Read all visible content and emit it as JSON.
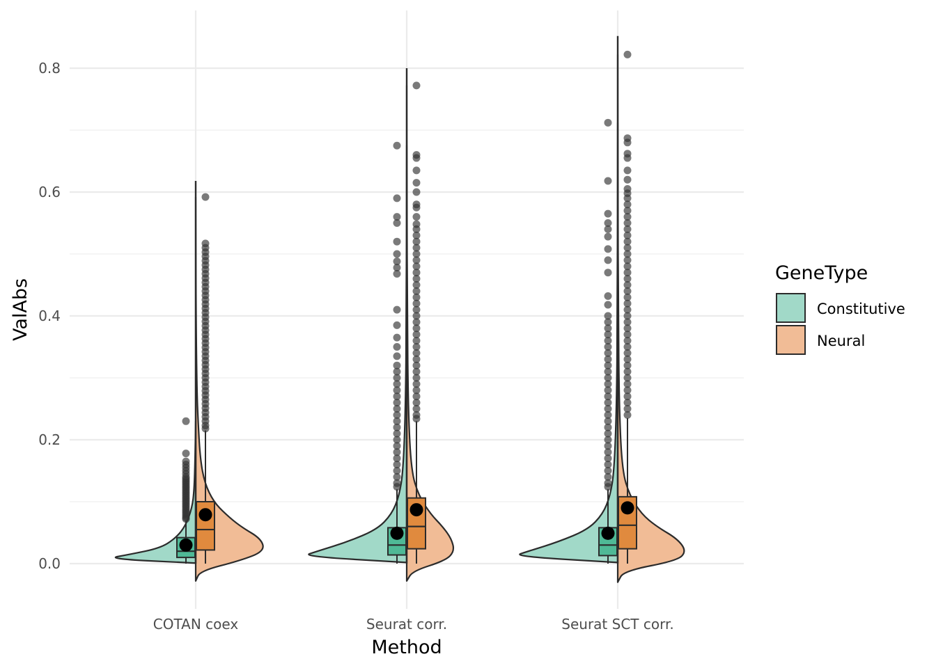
{
  "chart_data": {
    "type": "violin-box",
    "xlabel": "Method",
    "ylabel": "ValAbs",
    "ylim": [
      -0.07,
      0.89
    ],
    "yticks": [
      0.0,
      0.2,
      0.4,
      0.6,
      0.8
    ],
    "ytick_labels": [
      "0.0",
      "0.2",
      "0.4",
      "0.6",
      "0.8"
    ],
    "grid": true,
    "categories": [
      "COTAN coex",
      "Seurat corr.",
      "Seurat SCT corr."
    ],
    "legend": {
      "title": "GeneType",
      "placement": "right",
      "entries": [
        {
          "label": "Constitutive",
          "color": "#a1d9c8"
        },
        {
          "label": "Neural",
          "color": "#f1bc96"
        }
      ]
    },
    "colors": {
      "constitutive_violin": "#a1d9c8",
      "constitutive_box": "#4fb996",
      "neural_violin": "#f1bc96",
      "neural_box": "#e08a3e",
      "outline": "#2b2b2b",
      "mean_point": "#000000",
      "outlier": "#333333"
    },
    "series": [
      {
        "name": "Constitutive",
        "groups": [
          {
            "category": "COTAN coex",
            "q1": 0.01,
            "median": 0.02,
            "q3": 0.042,
            "whisker_low": 0.0,
            "whisker_high": 0.07,
            "mean": 0.03,
            "outliers": [
              0.23,
              0.178,
              0.165,
              0.16,
              0.155,
              0.15,
              0.145,
              0.14,
              0.137,
              0.134,
              0.131,
              0.128,
              0.125,
              0.122,
              0.119,
              0.116,
              0.113,
              0.11,
              0.107,
              0.104,
              0.101,
              0.098,
              0.095,
              0.092,
              0.089,
              0.086,
              0.083,
              0.08,
              0.077,
              0.074,
              0.072
            ]
          },
          {
            "category": "Seurat corr.",
            "q1": 0.014,
            "median": 0.03,
            "q3": 0.058,
            "whisker_low": 0.0,
            "whisker_high": 0.12,
            "mean": 0.049,
            "outliers": [
              0.675,
              0.59,
              0.56,
              0.55,
              0.52,
              0.5,
              0.488,
              0.478,
              0.468,
              0.41,
              0.385,
              0.365,
              0.35,
              0.335,
              0.32,
              0.31,
              0.3,
              0.29,
              0.28,
              0.27,
              0.26,
              0.25,
              0.24,
              0.23,
              0.22,
              0.21,
              0.2,
              0.19,
              0.18,
              0.17,
              0.16,
              0.15,
              0.14,
              0.13,
              0.124
            ]
          },
          {
            "category": "Seurat SCT corr.",
            "q1": 0.013,
            "median": 0.03,
            "q3": 0.058,
            "whisker_low": 0.0,
            "whisker_high": 0.12,
            "mean": 0.049,
            "outliers": [
              0.712,
              0.618,
              0.565,
              0.55,
              0.54,
              0.528,
              0.508,
              0.49,
              0.47,
              0.432,
              0.418,
              0.4,
              0.39,
              0.38,
              0.37,
              0.36,
              0.35,
              0.34,
              0.33,
              0.32,
              0.31,
              0.3,
              0.29,
              0.28,
              0.27,
              0.26,
              0.25,
              0.24,
              0.23,
              0.22,
              0.21,
              0.2,
              0.19,
              0.18,
              0.17,
              0.16,
              0.15,
              0.14,
              0.13,
              0.124
            ]
          }
        ]
      },
      {
        "name": "Neural",
        "groups": [
          {
            "category": "COTAN coex",
            "q1": 0.022,
            "median": 0.055,
            "q3": 0.1,
            "whisker_low": 0.0,
            "whisker_high": 0.215,
            "mean": 0.079,
            "outliers": [
              0.592,
              0.517,
              0.51,
              0.503,
              0.496,
              0.489,
              0.482,
              0.475,
              0.468,
              0.461,
              0.454,
              0.447,
              0.44,
              0.433,
              0.426,
              0.419,
              0.412,
              0.405,
              0.398,
              0.391,
              0.384,
              0.377,
              0.37,
              0.363,
              0.356,
              0.349,
              0.342,
              0.335,
              0.328,
              0.321,
              0.314,
              0.307,
              0.3,
              0.293,
              0.286,
              0.279,
              0.272,
              0.265,
              0.258,
              0.251,
              0.244,
              0.237,
              0.23,
              0.223,
              0.218
            ]
          },
          {
            "category": "Seurat corr.",
            "q1": 0.024,
            "median": 0.06,
            "q3": 0.106,
            "whisker_low": 0.0,
            "whisker_high": 0.23,
            "mean": 0.087,
            "outliers": [
              0.772,
              0.66,
              0.655,
              0.635,
              0.615,
              0.6,
              0.58,
              0.575,
              0.56,
              0.548,
              0.54,
              0.53,
              0.52,
              0.51,
              0.5,
              0.49,
              0.48,
              0.47,
              0.46,
              0.45,
              0.44,
              0.43,
              0.42,
              0.41,
              0.4,
              0.39,
              0.38,
              0.37,
              0.36,
              0.35,
              0.34,
              0.33,
              0.32,
              0.31,
              0.3,
              0.29,
              0.28,
              0.27,
              0.26,
              0.25,
              0.24,
              0.234
            ]
          },
          {
            "category": "Seurat SCT corr.",
            "q1": 0.024,
            "median": 0.062,
            "q3": 0.108,
            "whisker_low": 0.0,
            "whisker_high": 0.235,
            "mean": 0.09,
            "outliers": [
              0.822,
              0.687,
              0.68,
              0.662,
              0.655,
              0.635,
              0.62,
              0.605,
              0.598,
              0.59,
              0.58,
              0.57,
              0.56,
              0.55,
              0.54,
              0.53,
              0.52,
              0.51,
              0.5,
              0.49,
              0.48,
              0.47,
              0.46,
              0.45,
              0.44,
              0.43,
              0.42,
              0.41,
              0.4,
              0.39,
              0.38,
              0.37,
              0.36,
              0.35,
              0.34,
              0.33,
              0.32,
              0.31,
              0.3,
              0.29,
              0.28,
              0.27,
              0.26,
              0.25,
              0.24
            ]
          }
        ]
      }
    ],
    "violins": [
      {
        "category": "COTAN coex",
        "left_profile": [
          [
            0.001,
            0.01
          ],
          [
            0.008,
            0.3
          ],
          [
            0.015,
            0.22
          ],
          [
            0.025,
            0.12
          ],
          [
            0.04,
            0.07
          ],
          [
            0.06,
            0.035
          ],
          [
            0.09,
            0.012
          ],
          [
            0.12,
            0.005
          ],
          [
            0.17,
            0.002
          ],
          [
            0.23,
            0.0
          ]
        ],
        "right_profile": [
          [
            -0.028,
            0.0
          ],
          [
            -0.012,
            0.015
          ],
          [
            0.005,
            0.15
          ],
          [
            0.02,
            0.23
          ],
          [
            0.04,
            0.22
          ],
          [
            0.06,
            0.15
          ],
          [
            0.08,
            0.1
          ],
          [
            0.1,
            0.06
          ],
          [
            0.13,
            0.03
          ],
          [
            0.17,
            0.015
          ],
          [
            0.23,
            0.008
          ],
          [
            0.28,
            0.004
          ],
          [
            0.4,
            0.001
          ],
          [
            0.592,
            0.0
          ]
        ]
      },
      {
        "category": "Seurat corr.",
        "left_profile": [
          [
            0.002,
            0.01
          ],
          [
            0.012,
            0.35
          ],
          [
            0.02,
            0.3
          ],
          [
            0.035,
            0.2
          ],
          [
            0.055,
            0.1
          ],
          [
            0.08,
            0.05
          ],
          [
            0.11,
            0.025
          ],
          [
            0.15,
            0.012
          ],
          [
            0.25,
            0.004
          ],
          [
            0.4,
            0.001
          ],
          [
            0.675,
            0.0
          ]
        ],
        "right_profile": [
          [
            -0.028,
            0.0
          ],
          [
            -0.012,
            0.02
          ],
          [
            0.005,
            0.13
          ],
          [
            0.02,
            0.16
          ],
          [
            0.04,
            0.15
          ],
          [
            0.06,
            0.12
          ],
          [
            0.08,
            0.08
          ],
          [
            0.11,
            0.04
          ],
          [
            0.15,
            0.015
          ],
          [
            0.25,
            0.005
          ],
          [
            0.4,
            0.002
          ],
          [
            0.6,
            0.0005
          ],
          [
            0.772,
            0.0
          ]
        ]
      },
      {
        "category": "Seurat SCT corr.",
        "left_profile": [
          [
            0.002,
            0.01
          ],
          [
            0.012,
            0.35
          ],
          [
            0.02,
            0.3
          ],
          [
            0.035,
            0.2
          ],
          [
            0.055,
            0.1
          ],
          [
            0.08,
            0.05
          ],
          [
            0.11,
            0.025
          ],
          [
            0.15,
            0.012
          ],
          [
            0.25,
            0.004
          ],
          [
            0.4,
            0.001
          ],
          [
            0.712,
            0.0
          ]
        ],
        "right_profile": [
          [
            -0.03,
            0.0
          ],
          [
            -0.012,
            0.02
          ],
          [
            0.005,
            0.2
          ],
          [
            0.02,
            0.23
          ],
          [
            0.04,
            0.2
          ],
          [
            0.06,
            0.13
          ],
          [
            0.08,
            0.08
          ],
          [
            0.11,
            0.04
          ],
          [
            0.15,
            0.015
          ],
          [
            0.25,
            0.005
          ],
          [
            0.4,
            0.002
          ],
          [
            0.6,
            0.0005
          ],
          [
            0.822,
            0.0
          ]
        ]
      }
    ],
    "neural_whisker_extent": [
      0.618,
      0.8,
      0.852
    ]
  }
}
